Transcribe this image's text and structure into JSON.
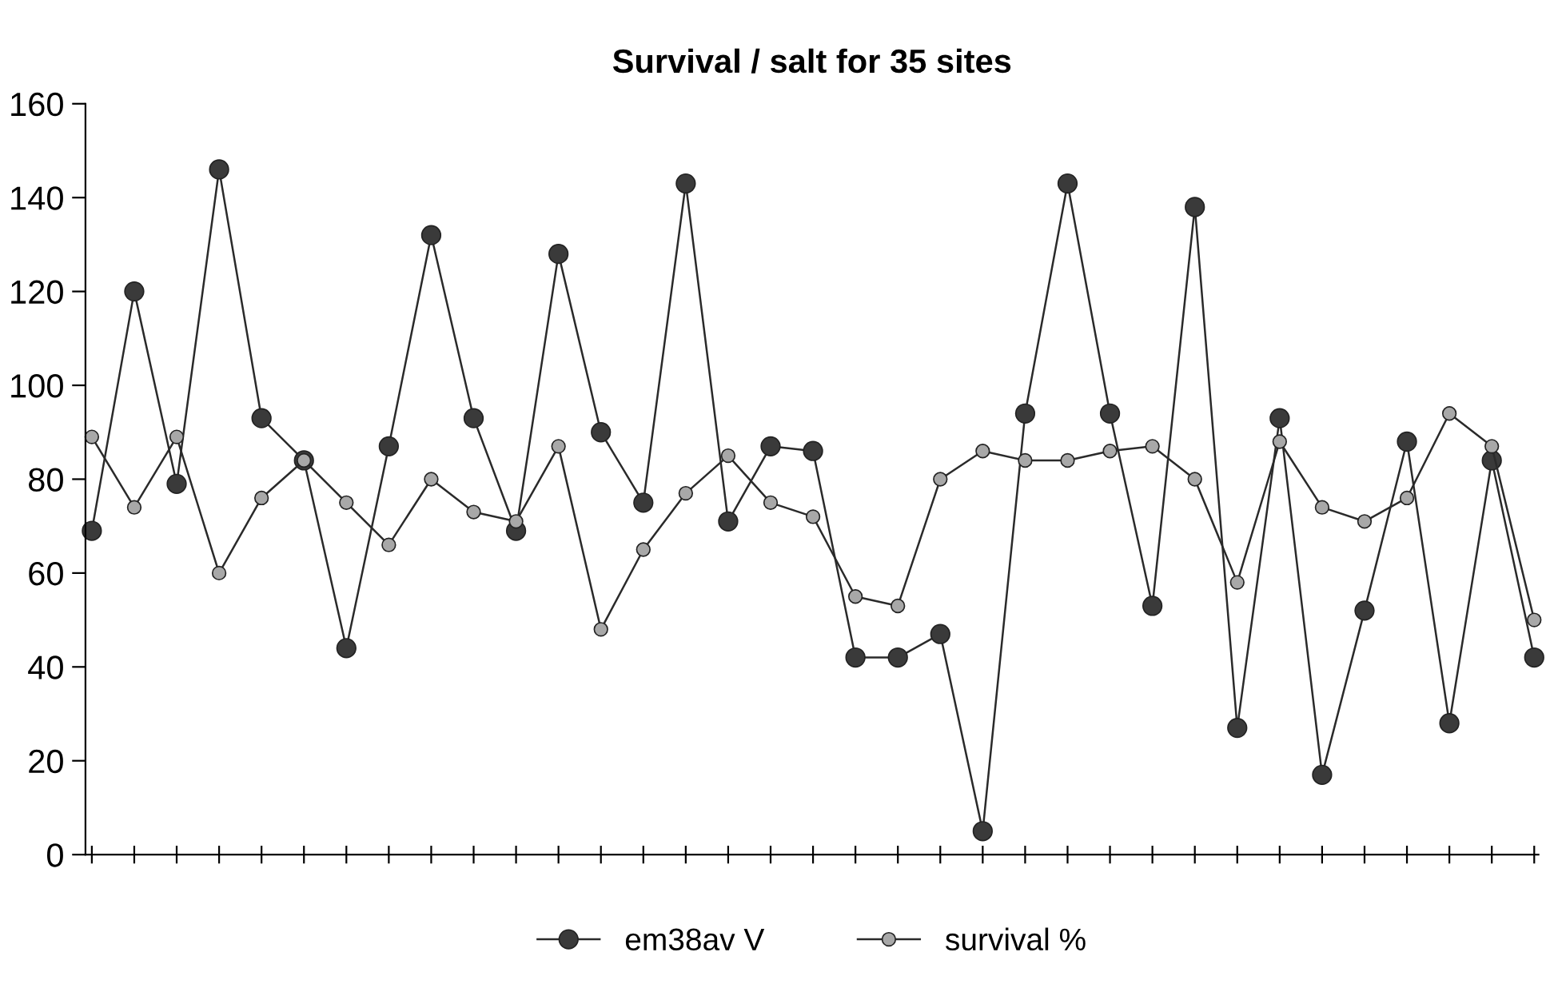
{
  "chart_data": {
    "type": "line",
    "title": "Survival / salt for 35 sites",
    "categories": [
      null,
      null,
      null,
      null,
      null,
      null,
      null,
      null,
      null,
      null,
      null,
      null,
      null,
      null,
      null,
      null,
      null,
      null,
      null,
      null,
      null,
      null,
      null,
      null,
      null,
      null,
      null,
      null,
      null,
      null,
      null,
      null,
      null,
      null,
      null
    ],
    "series": [
      {
        "name": "em38av V",
        "color": "#3a3a3a",
        "values": [
          69,
          120,
          79,
          146,
          93,
          84,
          44,
          87,
          132,
          93,
          69,
          128,
          90,
          75,
          143,
          71,
          87,
          86,
          42,
          42,
          47,
          5,
          94,
          143,
          94,
          53,
          138,
          27,
          93,
          17,
          52,
          88,
          28,
          84,
          42
        ]
      },
      {
        "name": "survival %",
        "color": "#a8a8a8",
        "values": [
          89,
          74,
          89,
          60,
          76,
          84,
          75,
          66,
          80,
          73,
          71,
          87,
          48,
          65,
          77,
          85,
          75,
          72,
          55,
          53,
          80,
          86,
          84,
          84,
          86,
          87,
          80,
          58,
          88,
          74,
          71,
          76,
          94,
          87,
          50
        ]
      }
    ],
    "marker": "circle",
    "line_style": "solid",
    "ylim": [
      0,
      160
    ],
    "yticks": [
      0,
      20,
      40,
      60,
      80,
      100,
      120,
      140,
      160
    ],
    "grid": false,
    "legend": "bottom"
  }
}
